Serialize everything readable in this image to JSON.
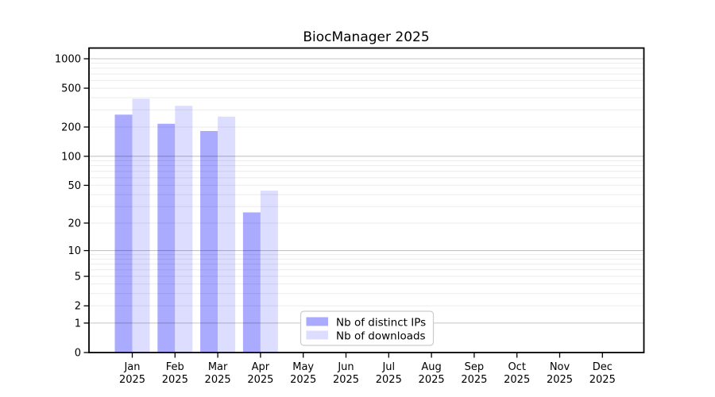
{
  "title": "BiocManager 2025",
  "chart_data": {
    "type": "bar",
    "title": "BiocManager 2025",
    "categories": [
      "Jan",
      "Feb",
      "Mar",
      "Apr",
      "May",
      "Jun",
      "Jul",
      "Aug",
      "Sep",
      "Oct",
      "Nov",
      "Dec"
    ],
    "x_year_label": "2025",
    "series": [
      {
        "name": "Nb of distinct IPs",
        "color": "#aaaaff",
        "values": [
          268,
          216,
          182,
          26,
          null,
          null,
          null,
          null,
          null,
          null,
          null,
          null
        ]
      },
      {
        "name": "Nb of downloads",
        "color": "#ddddff",
        "values": [
          390,
          330,
          256,
          44,
          null,
          null,
          null,
          null,
          null,
          null,
          null,
          null
        ]
      }
    ],
    "yticks": [
      0,
      1,
      2,
      5,
      10,
      20,
      50,
      100,
      200,
      500,
      1000
    ],
    "yscale": "log1p",
    "ylim": [
      0,
      1400
    ],
    "grid": "horizontal-log-minor-and-decade",
    "legend_position": "lower-center"
  },
  "colors": {
    "background": "#ffffff",
    "axis": "#000000",
    "grid_minor": "rgba(0,0,0,0.08)",
    "grid_decade": "rgba(0,0,0,0.23)",
    "legend_border": "#cccccc",
    "legend_fill": "#ffffff"
  }
}
